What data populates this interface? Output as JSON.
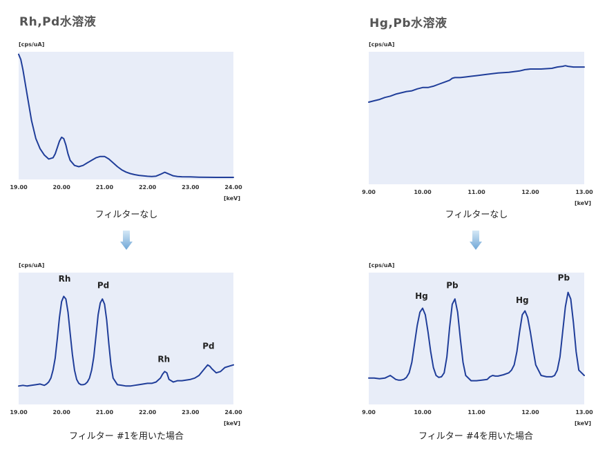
{
  "panels": {
    "left": {
      "title": "Rh,Pd水溶液"
    },
    "right": {
      "title": "Hg,Pb水溶液"
    }
  },
  "captions": {
    "left_top": "フィルターなし",
    "right_top": "フィルターなし",
    "left_bottom": "フィルター #1を用いた場合",
    "right_bottom": "フィルター #4を用いた場合"
  },
  "colors": {
    "line": "#1f3d99",
    "plot_bg": "#e8edf8",
    "arrow": "#8ab8de"
  },
  "chart_data": [
    {
      "id": "rhpd-nofilter",
      "type": "line",
      "ylabel": "[cps/uA]",
      "xlabel": "[keV]",
      "xlim": [
        19.0,
        24.0
      ],
      "ylim": [
        0,
        100
      ],
      "xticks": [
        "19.00",
        "20.00",
        "21.00",
        "22.00",
        "23.00",
        "24.00"
      ],
      "series": [
        {
          "x": [
            19.0,
            19.05,
            19.1,
            19.2,
            19.3,
            19.4,
            19.5,
            19.6,
            19.7,
            19.8,
            19.85,
            19.9,
            19.95,
            20.0,
            20.05,
            20.1,
            20.15,
            20.2,
            20.3,
            20.4,
            20.5,
            20.6,
            20.7,
            20.8,
            20.9,
            21.0,
            21.1,
            21.2,
            21.3,
            21.4,
            21.5,
            21.6,
            21.7,
            21.8,
            21.9,
            22.0,
            22.1,
            22.2,
            22.3,
            22.4,
            22.5,
            22.6,
            22.7,
            22.8,
            23.0,
            23.2,
            23.4,
            23.6,
            23.8,
            24.0
          ],
          "y": [
            98,
            94,
            86,
            66,
            46,
            32,
            24,
            19,
            16,
            17,
            20,
            25,
            30,
            33,
            32,
            27,
            20,
            15,
            11,
            10,
            11,
            13,
            15,
            17,
            18,
            18,
            16,
            13,
            10,
            7.5,
            5.8,
            4.6,
            3.8,
            3.2,
            2.8,
            2.5,
            2.3,
            2.6,
            4,
            5.6,
            4.2,
            2.8,
            2.3,
            2.1,
            2,
            1.8,
            1.7,
            1.6,
            1.6,
            1.6
          ]
        }
      ]
    },
    {
      "id": "hgpb-nofilter",
      "type": "line",
      "ylabel": "[cps/uA]",
      "xlabel": "[keV]",
      "xlim": [
        9.0,
        13.0
      ],
      "ylim": [
        0,
        100
      ],
      "xticks": [
        "9.00",
        "10.00",
        "11.00",
        "12.00",
        "13.00"
      ],
      "series": [
        {
          "x": [
            9.0,
            9.1,
            9.2,
            9.3,
            9.4,
            9.5,
            9.6,
            9.7,
            9.8,
            9.9,
            10.0,
            10.1,
            10.2,
            10.3,
            10.4,
            10.5,
            10.55,
            10.6,
            10.7,
            10.8,
            10.9,
            11.0,
            11.2,
            11.4,
            11.6,
            11.8,
            11.9,
            12.0,
            12.2,
            12.4,
            12.5,
            12.6,
            12.65,
            12.7,
            12.8,
            12.9,
            13.0
          ],
          "y": [
            62,
            63,
            64,
            65.5,
            66.5,
            68,
            69,
            70,
            70.5,
            72,
            73,
            73,
            74,
            75.5,
            77,
            78.5,
            80,
            80.5,
            80.5,
            81,
            81.5,
            82,
            83,
            84,
            84.5,
            85.5,
            86.5,
            87,
            87,
            87.5,
            88.5,
            89,
            89.5,
            89,
            88.5,
            88.5,
            88.5
          ]
        }
      ]
    },
    {
      "id": "rhpd-filter1",
      "type": "line",
      "ylabel": "[cps/uA]",
      "xlabel": "[keV]",
      "xlim": [
        19.0,
        24.0
      ],
      "ylim": [
        0,
        100
      ],
      "xticks": [
        "19.00",
        "20.00",
        "21.00",
        "22.00",
        "23.00",
        "24.00"
      ],
      "peak_labels": [
        {
          "x": 20.07,
          "y": 91,
          "text": "Rh"
        },
        {
          "x": 20.97,
          "y": 86,
          "text": "Pd"
        },
        {
          "x": 22.38,
          "y": 30,
          "text": "Rh"
        },
        {
          "x": 23.42,
          "y": 40,
          "text": "Pd"
        }
      ],
      "series": [
        {
          "x": [
            19.0,
            19.1,
            19.2,
            19.3,
            19.4,
            19.5,
            19.55,
            19.6,
            19.65,
            19.7,
            19.75,
            19.8,
            19.85,
            19.9,
            19.95,
            20.0,
            20.05,
            20.1,
            20.15,
            20.2,
            20.25,
            20.3,
            20.35,
            20.4,
            20.45,
            20.5,
            20.55,
            20.6,
            20.65,
            20.7,
            20.75,
            20.8,
            20.85,
            20.9,
            20.95,
            21.0,
            21.05,
            21.1,
            21.15,
            21.2,
            21.3,
            21.4,
            21.5,
            21.6,
            21.7,
            21.8,
            21.9,
            22.0,
            22.1,
            22.2,
            22.3,
            22.35,
            22.4,
            22.45,
            22.5,
            22.6,
            22.7,
            22.8,
            23.0,
            23.1,
            23.2,
            23.3,
            23.35,
            23.4,
            23.45,
            23.5,
            23.6,
            23.7,
            23.8,
            23.9,
            24.0
          ],
          "y": [
            14,
            14.5,
            14,
            14.5,
            15,
            15.5,
            15,
            14.5,
            15.5,
            17,
            20,
            26,
            35,
            50,
            66,
            78,
            82,
            80,
            70,
            54,
            38,
            26,
            19,
            16,
            15,
            15,
            15.5,
            17,
            20,
            26,
            36,
            52,
            68,
            77,
            80,
            76,
            64,
            46,
            30,
            20,
            15,
            14.5,
            14,
            14,
            14.5,
            15,
            15.5,
            16,
            16,
            17,
            20,
            23,
            25,
            24,
            19,
            17,
            18,
            18,
            19,
            20,
            22,
            26,
            28,
            30,
            29,
            27,
            24,
            25,
            28,
            29,
            30
          ]
        }
      ]
    },
    {
      "id": "hgpb-filter4",
      "type": "line",
      "ylabel": "[cps/uA]",
      "xlabel": "[keV]",
      "xlim": [
        9.0,
        13.0
      ],
      "ylim": [
        0,
        100
      ],
      "xticks": [
        "9.00",
        "10.00",
        "11.00",
        "12.00",
        "13.00"
      ],
      "peak_labels": [
        {
          "x": 9.98,
          "y": 78,
          "text": "Hg"
        },
        {
          "x": 10.55,
          "y": 86,
          "text": "Pb"
        },
        {
          "x": 11.85,
          "y": 75,
          "text": "Hg"
        },
        {
          "x": 12.62,
          "y": 92,
          "text": "Pb"
        }
      ],
      "series": [
        {
          "x": [
            9.0,
            9.1,
            9.2,
            9.3,
            9.35,
            9.4,
            9.45,
            9.5,
            9.55,
            9.6,
            9.65,
            9.7,
            9.75,
            9.8,
            9.85,
            9.9,
            9.95,
            10.0,
            10.05,
            10.1,
            10.15,
            10.2,
            10.25,
            10.3,
            10.35,
            10.4,
            10.45,
            10.5,
            10.55,
            10.6,
            10.65,
            10.7,
            10.75,
            10.8,
            10.9,
            11.0,
            11.1,
            11.2,
            11.25,
            11.3,
            11.35,
            11.4,
            11.5,
            11.6,
            11.65,
            11.7,
            11.75,
            11.8,
            11.85,
            11.9,
            11.95,
            12.0,
            12.05,
            12.1,
            12.2,
            12.3,
            12.4,
            12.45,
            12.5,
            12.55,
            12.6,
            12.65,
            12.7,
            12.75,
            12.8,
            12.85,
            12.9,
            13.0
          ],
          "y": [
            20,
            20,
            19.5,
            20,
            21,
            22,
            20.5,
            19,
            18.5,
            18.5,
            19,
            20.5,
            24,
            32,
            46,
            60,
            70,
            73,
            68,
            55,
            40,
            28,
            22,
            20.5,
            21,
            24,
            36,
            58,
            76,
            80,
            70,
            50,
            32,
            22,
            18,
            18,
            18.5,
            19,
            21,
            22,
            21.5,
            21.5,
            22.5,
            24,
            26,
            30,
            40,
            55,
            68,
            71,
            66,
            55,
            42,
            30,
            22,
            21,
            21,
            22,
            26,
            36,
            55,
            74,
            85,
            80,
            62,
            40,
            26,
            22
          ]
        }
      ]
    }
  ]
}
